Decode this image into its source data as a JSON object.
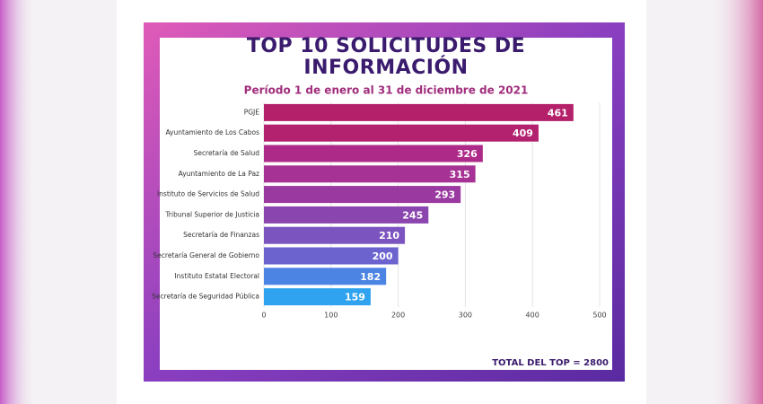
{
  "chart_data": {
    "type": "bar",
    "orientation": "horizontal",
    "title": "TOP 10 SOLICITUDES DE INFORMACIÓN",
    "subtitle": "Período 1 de enero al 31 de diciembre de 2021",
    "annotation": "TOTAL DEL TOP = 2800",
    "categories": [
      "PGJE",
      "Ayuntamiento de Los Cabos",
      "Secretaría de Salud",
      "Ayuntamiento de La Paz",
      "Instituto de Servicios de Salud",
      "Tribunal Superior de Justicia",
      "Secretaría de Finanzas",
      "Secretaría General de Gobierno",
      "Instituto Estatal Electoral",
      "Secretaría de Seguridad Pública"
    ],
    "values": [
      461,
      409,
      326,
      315,
      293,
      245,
      210,
      200,
      182,
      159
    ],
    "colors": [
      "#b5206a",
      "#b3226f",
      "#ad2a88",
      "#a53294",
      "#9a3aa0",
      "#8b45ae",
      "#7c54c0",
      "#6c63cf",
      "#4c84e3",
      "#2fa3ef"
    ],
    "xlim": [
      0,
      500
    ],
    "xticks": [
      0,
      100,
      200,
      300,
      400,
      500
    ],
    "grid": true
  }
}
